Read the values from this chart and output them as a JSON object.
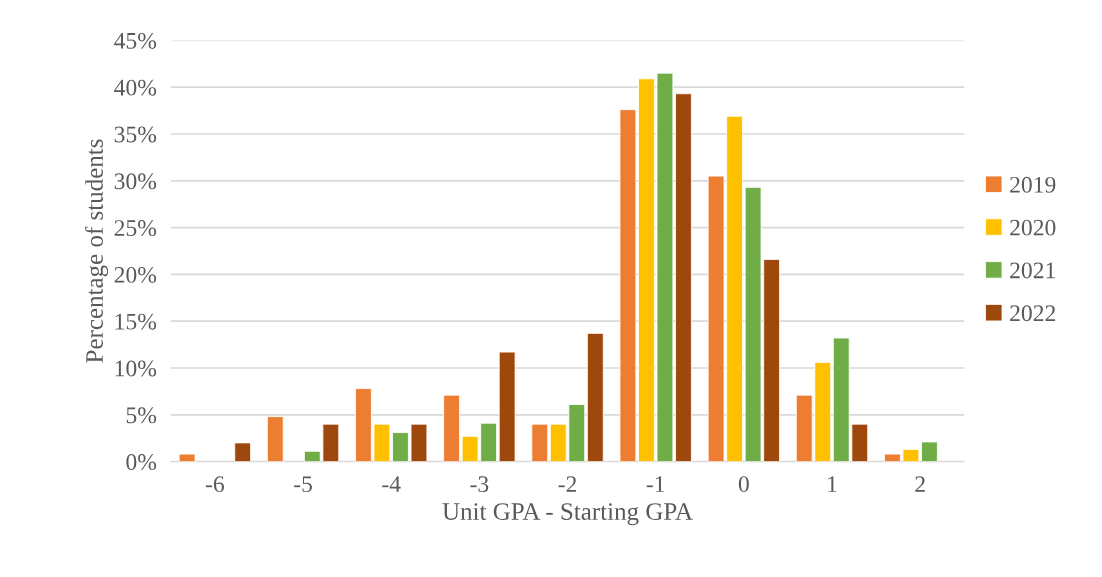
{
  "chart_data": {
    "type": "bar",
    "xlabel": "Unit GPA - Starting GPA",
    "ylabel": "Percentage of students",
    "categories": [
      "-6",
      "-5",
      "-4",
      "-3",
      "-2",
      "-1",
      "0",
      "1",
      "2"
    ],
    "series": [
      {
        "name": "2019",
        "color": "#ed7d31",
        "values": [
          0.8,
          4.8,
          7.8,
          7.1,
          4.0,
          37.6,
          30.5,
          7.1,
          0.8
        ]
      },
      {
        "name": "2020",
        "color": "#ffc000",
        "values": [
          null,
          null,
          4.0,
          2.7,
          4.0,
          40.9,
          36.9,
          10.6,
          1.3
        ]
      },
      {
        "name": "2021",
        "color": "#70ad47",
        "values": [
          null,
          1.1,
          3.1,
          4.1,
          6.1,
          41.5,
          29.3,
          13.2,
          2.1
        ]
      },
      {
        "name": "2022",
        "color": "#9e480e",
        "values": [
          2.0,
          4.0,
          4.0,
          11.7,
          13.7,
          39.3,
          21.6,
          4.0,
          null
        ]
      }
    ],
    "ylim": [
      0,
      45
    ],
    "yticks": [
      {
        "value": 0,
        "label": "0%"
      },
      {
        "value": 5,
        "label": "5%"
      },
      {
        "value": 10,
        "label": "10%"
      },
      {
        "value": 15,
        "label": "15%"
      },
      {
        "value": 20,
        "label": "20%"
      },
      {
        "value": 25,
        "label": "25%"
      },
      {
        "value": 30,
        "label": "30%"
      },
      {
        "value": 35,
        "label": "35%"
      },
      {
        "value": 40,
        "label": "40%"
      },
      {
        "value": 45,
        "label": "45%"
      }
    ],
    "grid": "y",
    "legend": "right"
  }
}
